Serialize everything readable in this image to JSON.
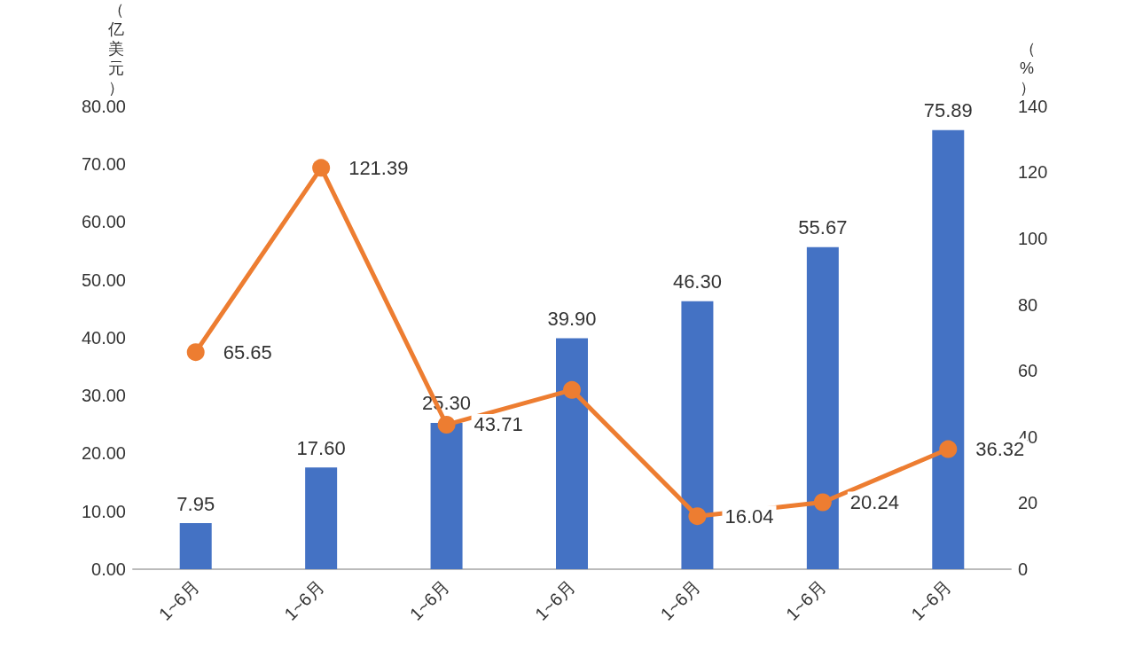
{
  "chart_data": {
    "type": "bar",
    "ylabel": "（亿美元）",
    "y2label": "（%）",
    "categories": [
      "1~6月",
      "1~6月",
      "1~6月",
      "1~6月",
      "1~6月",
      "1~6月",
      "1~6月"
    ],
    "series": [
      {
        "color": "#4472c4",
        "values": [
          7.95,
          17.6,
          25.3,
          39.9,
          46.3,
          55.67,
          75.89
        ],
        "value_labels": [
          "7.95",
          "17.60",
          "25.30",
          "39.90",
          "46.30",
          "55.67",
          "75.89"
        ]
      },
      {
        "type": "line",
        "axis": "y2",
        "color": "#ed7d31",
        "marker": "circle",
        "values": [
          65.65,
          121.39,
          43.71,
          54.2,
          16.04,
          20.24,
          36.32
        ],
        "value_labels": [
          "65.65",
          "121.39",
          "43.71",
          null,
          "16.04",
          "20.24",
          "36.32"
        ]
      }
    ],
    "ylim": [
      0,
      80
    ],
    "yticks": [
      {
        "value": 0,
        "label": "0.00"
      },
      {
        "value": 10,
        "label": "10.00"
      },
      {
        "value": 20,
        "label": "20.00"
      },
      {
        "value": 30,
        "label": "30.00"
      },
      {
        "value": 40,
        "label": "40.00"
      },
      {
        "value": 50,
        "label": "50.00"
      },
      {
        "value": 60,
        "label": "60.00"
      },
      {
        "value": 70,
        "label": "70.00"
      },
      {
        "value": 80,
        "label": "80.00"
      }
    ],
    "y2lim": [
      0,
      140
    ],
    "y2ticks": [
      0,
      20,
      40,
      60,
      80,
      100,
      120,
      140
    ],
    "grid": false
  }
}
